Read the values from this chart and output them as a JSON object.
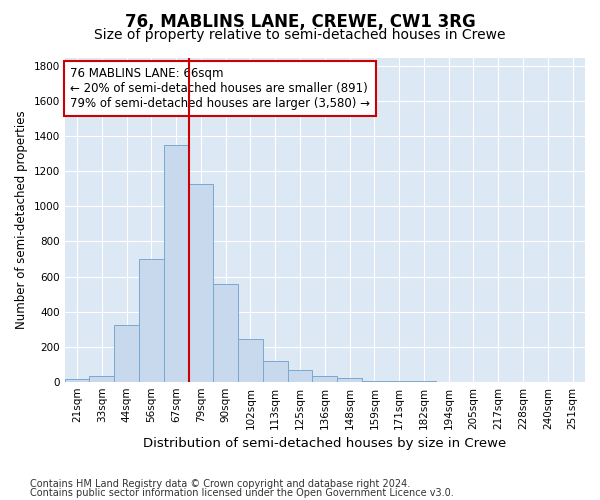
{
  "title": "76, MABLINS LANE, CREWE, CW1 3RG",
  "subtitle": "Size of property relative to semi-detached houses in Crewe",
  "xlabel": "Distribution of semi-detached houses by size in Crewe",
  "ylabel": "Number of semi-detached properties",
  "categories": [
    "21sqm",
    "33sqm",
    "44sqm",
    "56sqm",
    "67sqm",
    "79sqm",
    "90sqm",
    "102sqm",
    "113sqm",
    "125sqm",
    "136sqm",
    "148sqm",
    "159sqm",
    "171sqm",
    "182sqm",
    "194sqm",
    "205sqm",
    "217sqm",
    "228sqm",
    "240sqm",
    "251sqm"
  ],
  "values": [
    15,
    30,
    325,
    700,
    1350,
    1130,
    555,
    245,
    120,
    65,
    30,
    20,
    5,
    3,
    2,
    1,
    0,
    0,
    0,
    0,
    0
  ],
  "bar_color": "#c9d9ed",
  "bar_edge_color": "#7aa8d0",
  "vline_x_idx": 4.5,
  "vline_color": "#cc0000",
  "annotation_text": "76 MABLINS LANE: 66sqm\n← 20% of semi-detached houses are smaller (891)\n79% of semi-detached houses are larger (3,580) →",
  "annotation_box_facecolor": "#ffffff",
  "annotation_box_edgecolor": "#cc0000",
  "ylim": [
    0,
    1850
  ],
  "yticks": [
    0,
    200,
    400,
    600,
    800,
    1000,
    1200,
    1400,
    1600,
    1800
  ],
  "background_color": "#dde8f5",
  "footer1": "Contains HM Land Registry data © Crown copyright and database right 2024.",
  "footer2": "Contains public sector information licensed under the Open Government Licence v3.0.",
  "title_fontsize": 12,
  "subtitle_fontsize": 10,
  "xlabel_fontsize": 9.5,
  "ylabel_fontsize": 8.5,
  "tick_fontsize": 7.5,
  "annotation_fontsize": 8.5,
  "footer_fontsize": 7
}
